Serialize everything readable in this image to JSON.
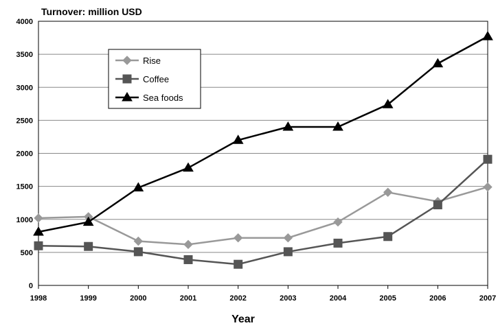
{
  "chart_data": {
    "type": "line",
    "title": "",
    "ylabel": "Turnover: million USD",
    "xlabel": "Year",
    "x": [
      "1998",
      "1999",
      "2000",
      "2001",
      "2002",
      "2003",
      "2004",
      "2005",
      "2006",
      "2007"
    ],
    "ylim": [
      0,
      4000
    ],
    "yticks": [
      0,
      500,
      1000,
      1500,
      2000,
      2500,
      3000,
      3500,
      4000
    ],
    "grid": true,
    "legend_position": "top-left",
    "series": [
      {
        "name": "Rise",
        "color": "#999999",
        "marker": "diamond",
        "values": [
          1020,
          1040,
          670,
          620,
          720,
          720,
          960,
          1410,
          1270,
          1490
        ]
      },
      {
        "name": "Coffee",
        "color": "#555555",
        "marker": "square",
        "values": [
          600,
          590,
          510,
          390,
          320,
          510,
          640,
          740,
          1220,
          1910
        ]
      },
      {
        "name": "Sea foods",
        "color": "#000000",
        "marker": "triangle",
        "values": [
          810,
          960,
          1480,
          1780,
          2200,
          2400,
          2400,
          2740,
          3360,
          3770
        ]
      }
    ]
  }
}
